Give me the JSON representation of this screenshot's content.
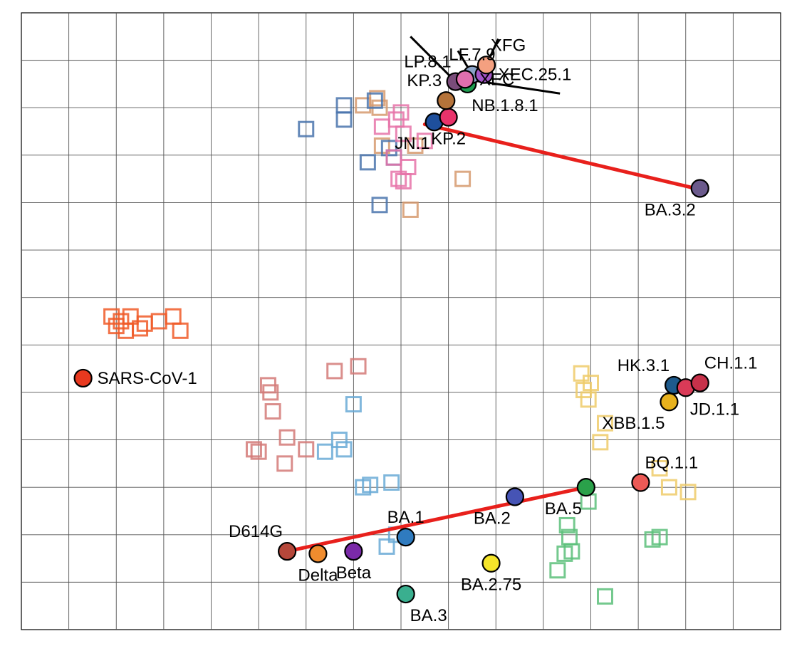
{
  "chart_data": {
    "type": "scatter",
    "title": "",
    "xlabel": "",
    "ylabel": "",
    "xlim": [
      0,
      16
    ],
    "ylim": [
      0,
      13
    ],
    "grid": true,
    "legend": "none",
    "antigens": [
      {
        "label": "SARS-CoV-1",
        "x": 1.3,
        "y": 5.3,
        "color": "#e8391f",
        "label_pos": "right"
      },
      {
        "label": "D614G",
        "x": 5.6,
        "y": 1.65,
        "color": "#b5473a",
        "label_pos": "top-left"
      },
      {
        "label": "Delta",
        "x": 6.25,
        "y": 1.6,
        "color": "#f08c2e",
        "label_pos": "bottom"
      },
      {
        "label": "Beta",
        "x": 7.0,
        "y": 1.65,
        "color": "#7a2aa8",
        "label_pos": "bottom"
      },
      {
        "label": "BA.1",
        "x": 8.1,
        "y": 1.95,
        "color": "#2f7bbf",
        "label_pos": "top"
      },
      {
        "label": "BA.3",
        "x": 8.1,
        "y": 0.75,
        "color": "#3aaf8f",
        "label_pos": "bottom-right"
      },
      {
        "label": "BA.2",
        "x": 10.4,
        "y": 2.8,
        "color": "#4654b5",
        "label_pos": "bottom-left"
      },
      {
        "label": "BA.2.75",
        "x": 9.9,
        "y": 1.4,
        "color": "#f5e52a",
        "label_pos": "bottom"
      },
      {
        "label": "BA.5",
        "x": 11.9,
        "y": 3.0,
        "color": "#2aa14a",
        "label_pos": "bottom-left"
      },
      {
        "label": "BQ.1.1",
        "x": 13.05,
        "y": 3.1,
        "color": "#ec5a56",
        "label_pos": "top-right"
      },
      {
        "label": "XBB.1.5",
        "x": 13.65,
        "y": 4.8,
        "color": "#e8b21e",
        "label_pos": "bottom-left"
      },
      {
        "label": "HK.3.1",
        "x": 13.75,
        "y": 5.15,
        "color": "#1e5a8c",
        "label_pos": "top-left"
      },
      {
        "label": "JD.1.1",
        "x": 14.0,
        "y": 5.1,
        "color": "#d93a57",
        "label_pos": "bottom-right"
      },
      {
        "label": "CH.1.1",
        "x": 14.3,
        "y": 5.2,
        "color": "#c7314a",
        "label_pos": "top-right"
      },
      {
        "label": "BA.3.2",
        "x": 14.3,
        "y": 9.3,
        "color": "#6b5a8c",
        "label_pos": "bottom-left"
      },
      {
        "label": "JN.1",
        "x": 8.7,
        "y": 10.7,
        "color": "#1e4f9c",
        "label_pos": "bottom-left"
      },
      {
        "label": "KP.2",
        "x": 9.0,
        "y": 10.8,
        "color": "#e8336b",
        "label_pos": "bottom"
      },
      {
        "label": "KP.3",
        "x": 8.95,
        "y": 11.15,
        "color": "#b5733a",
        "label_pos": "top-left"
      },
      {
        "label": "NB.1.8.1",
        "x": 9.4,
        "y": 11.5,
        "color": "#1d9c4f",
        "label_pos": "bottom-right"
      },
      {
        "label": "LP.8.1",
        "x": 9.15,
        "y": 11.55,
        "color": "#7a4c7a",
        "label_pos": "top-left"
      },
      {
        "label": "LF.7.9",
        "x": 9.5,
        "y": 11.7,
        "color": "#8aa3c8",
        "label_pos": "top"
      },
      {
        "label": "XEC",
        "x": 9.35,
        "y": 11.6,
        "color": "#e06fae",
        "label_pos": "right"
      },
      {
        "label": "XEC.25.1",
        "x": 9.75,
        "y": 11.7,
        "color": "#a455c8",
        "label_pos": "right"
      },
      {
        "label": "XFG",
        "x": 9.8,
        "y": 11.9,
        "color": "#f4a080",
        "label_pos": "top-right"
      }
    ],
    "sera": [
      {
        "x": 1.9,
        "y": 6.6,
        "color": "#f05a28"
      },
      {
        "x": 2.1,
        "y": 6.5,
        "color": "#f05a28"
      },
      {
        "x": 2.3,
        "y": 6.6,
        "color": "#f05a28"
      },
      {
        "x": 2.0,
        "y": 6.4,
        "color": "#f05a28"
      },
      {
        "x": 2.6,
        "y": 6.45,
        "color": "#f05a28"
      },
      {
        "x": 2.9,
        "y": 6.5,
        "color": "#f05a28"
      },
      {
        "x": 2.2,
        "y": 6.3,
        "color": "#f05a28"
      },
      {
        "x": 2.5,
        "y": 6.35,
        "color": "#f05a28"
      },
      {
        "x": 3.2,
        "y": 6.6,
        "color": "#f05a28"
      },
      {
        "x": 3.35,
        "y": 6.3,
        "color": "#f05a28"
      },
      {
        "x": 6.6,
        "y": 5.45,
        "color": "#d47a78"
      },
      {
        "x": 7.1,
        "y": 5.55,
        "color": "#d47a78"
      },
      {
        "x": 5.2,
        "y": 5.15,
        "color": "#d47a78"
      },
      {
        "x": 5.25,
        "y": 5.0,
        "color": "#d47a78"
      },
      {
        "x": 5.3,
        "y": 4.6,
        "color": "#d47a78"
      },
      {
        "x": 5.6,
        "y": 4.05,
        "color": "#d47a78"
      },
      {
        "x": 4.9,
        "y": 3.8,
        "color": "#d47a78"
      },
      {
        "x": 5.0,
        "y": 3.75,
        "color": "#d47a78"
      },
      {
        "x": 5.55,
        "y": 3.5,
        "color": "#d47a78"
      },
      {
        "x": 6.0,
        "y": 3.8,
        "color": "#d47a78"
      },
      {
        "x": 7.0,
        "y": 4.75,
        "color": "#6aaad6"
      },
      {
        "x": 6.7,
        "y": 4.0,
        "color": "#6aaad6"
      },
      {
        "x": 6.4,
        "y": 3.75,
        "color": "#6aaad6"
      },
      {
        "x": 6.8,
        "y": 3.8,
        "color": "#6aaad6"
      },
      {
        "x": 7.2,
        "y": 3.0,
        "color": "#6aaad6"
      },
      {
        "x": 7.35,
        "y": 3.05,
        "color": "#6aaad6"
      },
      {
        "x": 7.8,
        "y": 3.1,
        "color": "#6aaad6"
      },
      {
        "x": 7.9,
        "y": 2.0,
        "color": "#6aaad6"
      },
      {
        "x": 7.7,
        "y": 1.75,
        "color": "#6aaad6"
      },
      {
        "x": 11.5,
        "y": 2.2,
        "color": "#5cbf7a"
      },
      {
        "x": 11.95,
        "y": 2.7,
        "color": "#5cbf7a"
      },
      {
        "x": 11.55,
        "y": 1.95,
        "color": "#5cbf7a"
      },
      {
        "x": 11.45,
        "y": 1.6,
        "color": "#5cbf7a"
      },
      {
        "x": 11.6,
        "y": 1.65,
        "color": "#5cbf7a"
      },
      {
        "x": 11.3,
        "y": 1.25,
        "color": "#5cbf7a"
      },
      {
        "x": 13.3,
        "y": 1.9,
        "color": "#5cbf7a"
      },
      {
        "x": 13.45,
        "y": 1.95,
        "color": "#5cbf7a"
      },
      {
        "x": 12.3,
        "y": 0.7,
        "color": "#5cbf7a"
      },
      {
        "x": 11.8,
        "y": 5.4,
        "color": "#eecb6a"
      },
      {
        "x": 12.0,
        "y": 5.2,
        "color": "#eecb6a"
      },
      {
        "x": 11.95,
        "y": 4.85,
        "color": "#eecb6a"
      },
      {
        "x": 11.85,
        "y": 5.05,
        "color": "#eecb6a"
      },
      {
        "x": 12.3,
        "y": 4.35,
        "color": "#eecb6a"
      },
      {
        "x": 12.2,
        "y": 3.95,
        "color": "#eecb6a"
      },
      {
        "x": 13.45,
        "y": 3.4,
        "color": "#eecb6a"
      },
      {
        "x": 13.65,
        "y": 3.0,
        "color": "#eecb6a"
      },
      {
        "x": 14.05,
        "y": 2.9,
        "color": "#eecb6a"
      },
      {
        "x": 7.5,
        "y": 11.2,
        "color": "#d69a6e"
      },
      {
        "x": 7.2,
        "y": 11.05,
        "color": "#d69a6e"
      },
      {
        "x": 7.55,
        "y": 11.0,
        "color": "#d69a6e"
      },
      {
        "x": 7.6,
        "y": 10.2,
        "color": "#d69a6e"
      },
      {
        "x": 8.3,
        "y": 10.2,
        "color": "#d69a6e"
      },
      {
        "x": 9.3,
        "y": 9.5,
        "color": "#d69a6e"
      },
      {
        "x": 8.2,
        "y": 8.85,
        "color": "#d69a6e"
      },
      {
        "x": 6.8,
        "y": 11.05,
        "color": "#4a74ad"
      },
      {
        "x": 6.8,
        "y": 10.75,
        "color": "#4a74ad"
      },
      {
        "x": 6.0,
        "y": 10.55,
        "color": "#4a74ad"
      },
      {
        "x": 7.45,
        "y": 11.15,
        "color": "#4a74ad"
      },
      {
        "x": 7.75,
        "y": 10.15,
        "color": "#4a74ad"
      },
      {
        "x": 7.85,
        "y": 9.95,
        "color": "#4a74ad"
      },
      {
        "x": 7.3,
        "y": 9.85,
        "color": "#4a74ad"
      },
      {
        "x": 7.55,
        "y": 8.95,
        "color": "#4a74ad"
      },
      {
        "x": 7.9,
        "y": 10.75,
        "color": "#e673a8"
      },
      {
        "x": 8.0,
        "y": 10.9,
        "color": "#e673a8"
      },
      {
        "x": 7.6,
        "y": 10.6,
        "color": "#e673a8"
      },
      {
        "x": 8.05,
        "y": 10.45,
        "color": "#e673a8"
      },
      {
        "x": 8.5,
        "y": 10.3,
        "color": "#e673a8"
      },
      {
        "x": 7.85,
        "y": 9.95,
        "color": "#e673a8"
      },
      {
        "x": 8.15,
        "y": 9.75,
        "color": "#e673a8"
      },
      {
        "x": 7.95,
        "y": 9.5,
        "color": "#e673a8"
      },
      {
        "x": 8.05,
        "y": 9.45,
        "color": "#e673a8"
      }
    ],
    "leader_lines": [
      {
        "label": "LP.8.1",
        "from": [
          8.2,
          12.5
        ],
        "to": [
          9.15,
          11.55
        ]
      },
      {
        "label": "LF.7.9",
        "from": [
          9.2,
          12.2
        ],
        "to": [
          9.5,
          11.7
        ]
      },
      {
        "label": "XFG",
        "from": [
          10.05,
          12.45
        ],
        "to": [
          9.8,
          11.9
        ]
      },
      {
        "label": "XEC",
        "from": [
          11.35,
          11.3
        ],
        "to": [
          9.35,
          11.6
        ]
      }
    ],
    "trend_lines": [
      {
        "from": [
          5.6,
          1.65
        ],
        "to": [
          11.9,
          3.0
        ],
        "color": "#e8201c"
      },
      {
        "from": [
          8.5,
          10.65
        ],
        "to": [
          14.2,
          9.3
        ],
        "color": "#e8201c"
      }
    ]
  }
}
